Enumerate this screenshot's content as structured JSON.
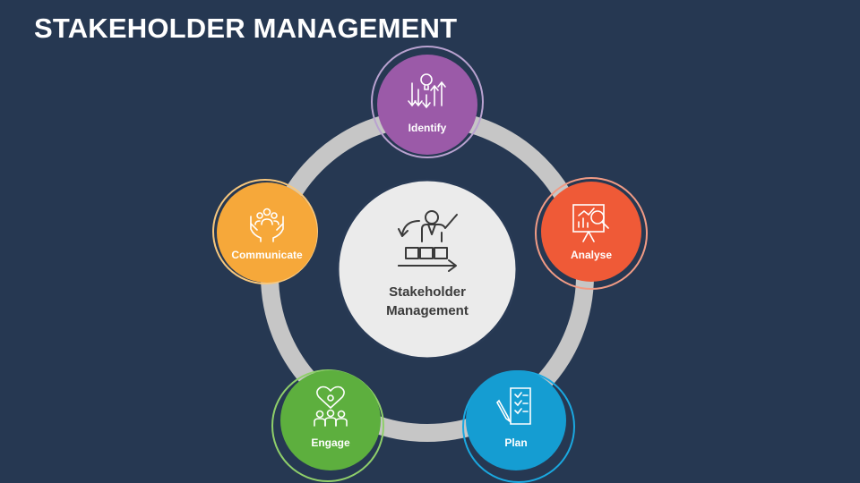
{
  "title": "STAKEHOLDER MANAGEMENT",
  "center": {
    "line1": "Stakeholder",
    "line2": "Management",
    "icon": "presenter-arrow-icon"
  },
  "nodes": [
    {
      "key": "identify",
      "label": "Identify",
      "color": "#9b5aa8",
      "ring": "#b9a2d0",
      "icon": "lightbulb-arrows-icon"
    },
    {
      "key": "analyse",
      "label": "Analyse",
      "color": "#ef5a37",
      "ring": "#f19b85",
      "icon": "chart-magnifier-icon"
    },
    {
      "key": "plan",
      "label": "Plan",
      "color": "#159dd2",
      "ring": "#1aa8e0",
      "icon": "checklist-pen-icon"
    },
    {
      "key": "engage",
      "label": "Engage",
      "color": "#5daf3e",
      "ring": "#8fcf6a",
      "icon": "people-heart-icon"
    },
    {
      "key": "communicate",
      "label": "Communicate",
      "color": "#f6a83a",
      "ring": "#f7c77d",
      "icon": "hands-people-icon"
    }
  ]
}
